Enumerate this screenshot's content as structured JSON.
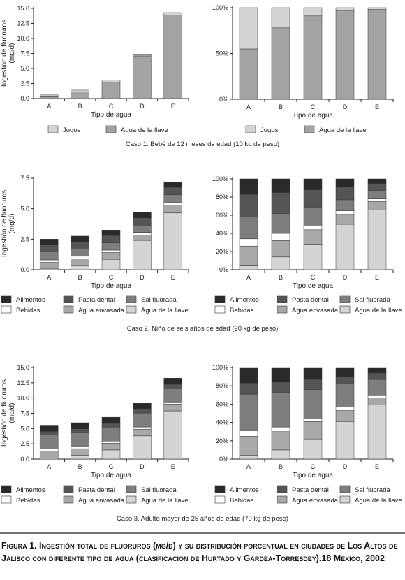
{
  "figure_caption": "Figura 1. Ingestión total de fluoruros (mg/d) y su distribución porcentual en ciudades de Los Altos de Jalisco con diferente tipo de agua (clasificación de Hurtado y Gardea-Torresdey).18 México, 2002",
  "colors": {
    "Alimentos": "#2a2a2a",
    "Pasta dental": "#555555",
    "Sal fluorada": "#7e7e7e",
    "Bebidas": "#ffffff",
    "Agua envasada": "#a8a8a8",
    "Agua de la llave": "#d4d4d4",
    "Jugos": "#d4d4d4",
    "Agua de la llave caso1": "#a3a3a3"
  },
  "chart_data": [
    {
      "type": "bar",
      "stacked": true,
      "caso": 1,
      "caption": "Caso 1. Bebé de 12 meses de edad (10 kg de peso)",
      "title": "",
      "xlabel": "Tipo de agua",
      "ylabel": "Ingestión de fluoruros (mg/d)",
      "categories": [
        "A",
        "B",
        "C",
        "D",
        "E"
      ],
      "ylim": [
        0,
        15
      ],
      "yticks": [
        "0.0",
        "2.5",
        "5.0",
        "7.5",
        "10.0",
        "12.5",
        "15.0"
      ],
      "series": [
        {
          "name": "Agua de la llave",
          "values": [
            0.3,
            1.1,
            2.7,
            7.1,
            13.9
          ]
        },
        {
          "name": "Jugos",
          "values": [
            0.3,
            0.3,
            0.4,
            0.3,
            0.4
          ]
        }
      ]
    },
    {
      "type": "bar",
      "stacked": true,
      "percent": true,
      "caso": 1,
      "xlabel": "Tipo de agua",
      "ylabel": "",
      "categories": [
        "A",
        "B",
        "C",
        "D",
        "E"
      ],
      "ylim": [
        0,
        100
      ],
      "yticks": [
        "0%",
        "50%",
        "100%"
      ],
      "series": [
        {
          "name": "Agua de la llave",
          "values": [
            55,
            78,
            91,
            97,
            98
          ]
        },
        {
          "name": "Jugos",
          "values": [
            45,
            22,
            9,
            3,
            2
          ]
        }
      ]
    },
    {
      "type": "bar",
      "stacked": true,
      "caso": 2,
      "caption": "Caso 2. Niño de seis años de edad (20 kg de peso)",
      "xlabel": "Tipo de agua",
      "ylabel": "Ingestión de fluoruros (mg/d)",
      "categories": [
        "A",
        "B",
        "C",
        "D",
        "E"
      ],
      "ylim": [
        0,
        7.5
      ],
      "yticks": [
        "0.0",
        "2.5",
        "5.0",
        "7.5"
      ],
      "series": [
        {
          "name": "Agua de la llave",
          "values": [
            0.1,
            0.35,
            0.85,
            2.4,
            4.65
          ]
        },
        {
          "name": "Agua envasada",
          "values": [
            0.5,
            0.55,
            0.55,
            0.45,
            0.65
          ]
        },
        {
          "name": "Bebidas",
          "values": [
            0.2,
            0.2,
            0.2,
            0.2,
            0.2
          ]
        },
        {
          "name": "Sal fluorada",
          "values": [
            0.65,
            0.6,
            0.6,
            0.6,
            0.65
          ]
        },
        {
          "name": "Pasta dental",
          "values": [
            0.6,
            0.6,
            0.6,
            0.6,
            0.6
          ]
        },
        {
          "name": "Alimentos",
          "values": [
            0.45,
            0.45,
            0.45,
            0.45,
            0.45
          ]
        }
      ]
    },
    {
      "type": "bar",
      "stacked": true,
      "percent": true,
      "caso": 2,
      "xlabel": "Tipo de agua",
      "ylabel": "",
      "categories": [
        "A",
        "B",
        "C",
        "D",
        "E"
      ],
      "ylim": [
        0,
        100
      ],
      "yticks": [
        "0%",
        "20%",
        "40%",
        "60%",
        "80%",
        "100%"
      ],
      "series": [
        {
          "name": "Agua de la llave",
          "values": [
            5,
            14,
            28,
            50,
            66
          ]
        },
        {
          "name": "Agua envasada",
          "values": [
            21,
            18,
            16,
            11,
            9
          ]
        },
        {
          "name": "Bebidas",
          "values": [
            8,
            8,
            5,
            4,
            3
          ]
        },
        {
          "name": "Sal fluorada",
          "values": [
            25,
            22,
            20,
            12,
            9
          ]
        },
        {
          "name": "Pasta dental",
          "values": [
            24,
            23,
            19,
            14,
            8
          ]
        },
        {
          "name": "Alimentos",
          "values": [
            17,
            15,
            12,
            9,
            5
          ]
        }
      ]
    },
    {
      "type": "bar",
      "stacked": true,
      "caso": 3,
      "caption": "Caso 3. Adulto mayor de 25 años de edad (70 kg de peso)",
      "xlabel": "Tipo de agua",
      "ylabel": "Ingestión de fluoruros (mg/d)",
      "categories": [
        "A",
        "B",
        "C",
        "D",
        "E"
      ],
      "ylim": [
        0,
        15
      ],
      "yticks": [
        "0.0",
        "2.5",
        "5.0",
        "7.5",
        "10.0",
        "12.5",
        "15.0"
      ],
      "series": [
        {
          "name": "Agua de la llave",
          "values": [
            0.2,
            0.6,
            1.5,
            3.8,
            7.9
          ]
        },
        {
          "name": "Agua envasada",
          "values": [
            1.1,
            1.1,
            1.1,
            1.1,
            1.1
          ]
        },
        {
          "name": "Bebidas",
          "values": [
            0.35,
            0.35,
            0.35,
            0.35,
            0.35
          ]
        },
        {
          "name": "Sal fluorada",
          "values": [
            2.3,
            2.3,
            2.3,
            2.3,
            2.3
          ]
        },
        {
          "name": "Pasta dental",
          "values": [
            0.6,
            0.6,
            0.6,
            0.6,
            0.6
          ]
        },
        {
          "name": "Alimentos",
          "values": [
            1.0,
            1.0,
            1.0,
            1.0,
            1.0
          ]
        }
      ]
    },
    {
      "type": "bar",
      "stacked": true,
      "percent": true,
      "caso": 3,
      "xlabel": "Tipo de agua",
      "ylabel": "",
      "categories": [
        "A",
        "B",
        "C",
        "D",
        "E"
      ],
      "ylim": [
        0,
        100
      ],
      "yticks": [
        "0%",
        "20%",
        "40%",
        "60%",
        "80%",
        "100%"
      ],
      "series": [
        {
          "name": "Agua de la llave",
          "values": [
            4,
            10,
            22,
            41,
            59
          ]
        },
        {
          "name": "Agua envasada",
          "values": [
            21,
            20,
            19,
            12,
            8
          ]
        },
        {
          "name": "Bebidas",
          "values": [
            6,
            5,
            3,
            4,
            3
          ]
        },
        {
          "name": "Sal fluorada",
          "values": [
            40,
            38,
            32,
            25,
            17
          ]
        },
        {
          "name": "Pasta dental",
          "values": [
            12,
            11,
            11,
            8,
            7
          ]
        },
        {
          "name": "Alimentos",
          "values": [
            17,
            16,
            13,
            10,
            6
          ]
        }
      ]
    }
  ],
  "legends": {
    "caso1": [
      "Jugos",
      "Agua de la llave"
    ],
    "full": [
      "Alimentos",
      "Pasta dental",
      "Sal fluorada",
      "Bebidas",
      "Agua envasada",
      "Agua de la llave"
    ]
  }
}
